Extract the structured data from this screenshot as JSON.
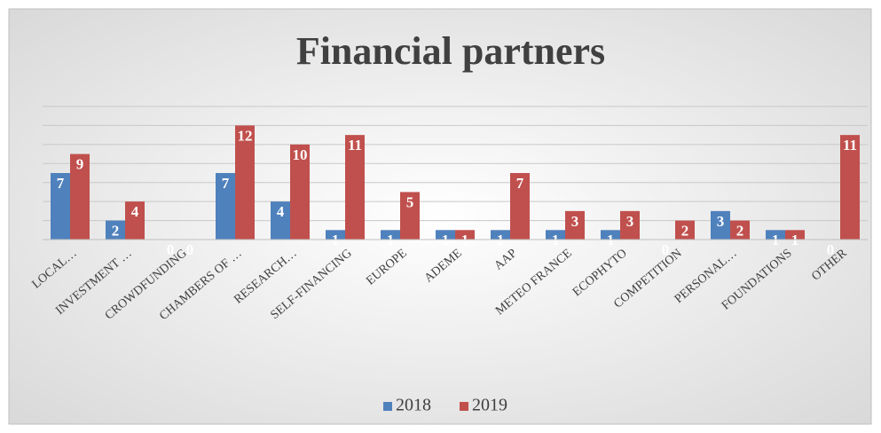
{
  "chart_data": {
    "type": "bar",
    "title": "Financial partners",
    "categories": [
      "LOCAL…",
      "INVESTMENT …",
      "CROWDFUNDING",
      "CHAMBERS OF …",
      "RESEARCH…",
      "SELF-FINANCING",
      "EUROPE",
      "ADEME",
      "AAP",
      "METEO FRANCE",
      "ECOPHYTO",
      "COMPETITION",
      "PERSONAL…",
      "FOUNDATIONS",
      "OTHER"
    ],
    "series": [
      {
        "name": "2018",
        "color": "#4f81bd",
        "values": [
          7,
          2,
          0,
          7,
          4,
          1,
          1,
          1,
          1,
          1,
          1,
          0,
          3,
          1,
          0
        ]
      },
      {
        "name": "2019",
        "color": "#c0504d",
        "values": [
          9,
          4,
          0,
          12,
          10,
          11,
          5,
          1,
          7,
          3,
          3,
          2,
          2,
          1,
          11
        ]
      }
    ],
    "ylim": [
      0,
      14
    ],
    "yticks": [
      0,
      2,
      4,
      6,
      8,
      10,
      12,
      14
    ],
    "grid": true,
    "legend": "bottom"
  }
}
